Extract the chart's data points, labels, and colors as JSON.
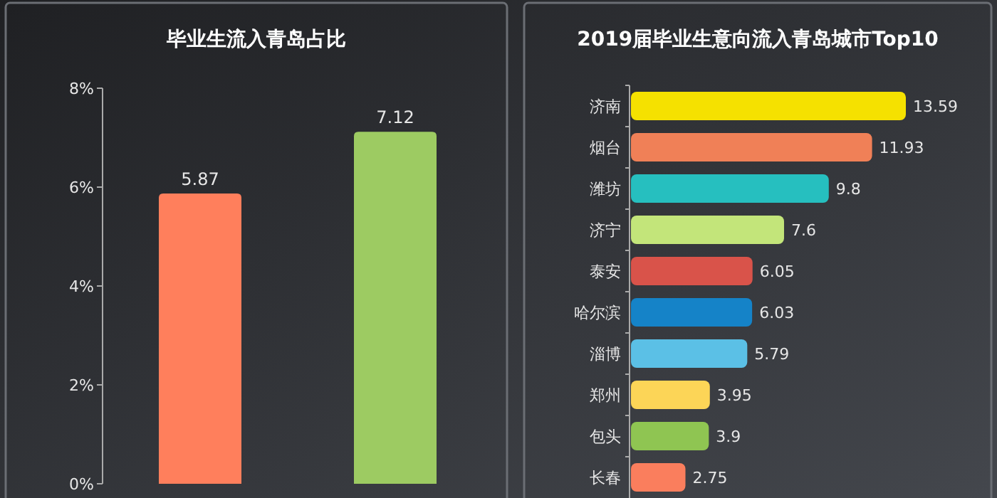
{
  "chart_data": [
    {
      "type": "bar",
      "title": "毕业生流入青岛占比",
      "categories": [
        null,
        null
      ],
      "values": [
        5.87,
        7.12
      ],
      "colors": [
        "#ff7f5c",
        "#9dcb62"
      ],
      "ylim": [
        0,
        8
      ],
      "yticks": [
        {
          "value": 0,
          "label": "0%"
        },
        {
          "value": 2,
          "label": "2%"
        },
        {
          "value": 4,
          "label": "4%"
        },
        {
          "value": 6,
          "label": "6%"
        },
        {
          "value": 8,
          "label": "8%"
        }
      ],
      "data_labels": true
    },
    {
      "type": "bar",
      "orientation": "horizontal",
      "title": "2019届毕业生意向流入青岛城市Top10",
      "categories": [
        "济南",
        "烟台",
        "潍坊",
        "济宁",
        "泰安",
        "哈尔滨",
        "淄博",
        "郑州",
        "包头",
        "长春"
      ],
      "values": [
        13.59,
        11.93,
        9.8,
        7.6,
        6.05,
        6.03,
        5.79,
        3.95,
        3.9,
        2.75
      ],
      "colors": [
        "#f5e100",
        "#f08057",
        "#26bfbf",
        "#c3e57a",
        "#d9534a",
        "#1583c8",
        "#5bc0e6",
        "#fcd557",
        "#8fc552",
        "#fa7e5d"
      ],
      "data_labels": true
    }
  ]
}
